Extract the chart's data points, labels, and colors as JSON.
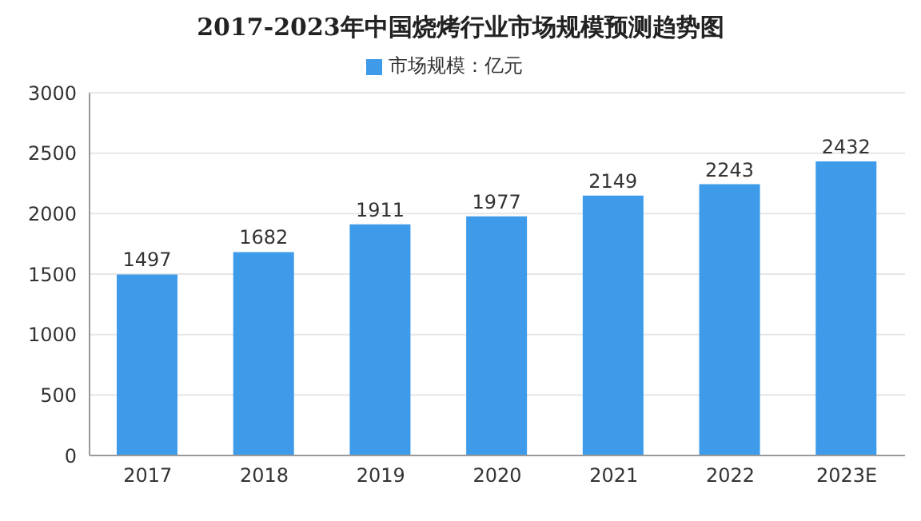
{
  "chart_data": {
    "type": "bar",
    "title": "2017-2023年中国烧烤行业市场规模预测趋势图",
    "categories": [
      "2017",
      "2018",
      "2019",
      "2020",
      "2021",
      "2022",
      "2023E"
    ],
    "series": [
      {
        "name": "市场规模：亿元",
        "color": "#3d9be9",
        "values": [
          1497,
          1682,
          1911,
          1977,
          2149,
          2243,
          2432
        ]
      }
    ],
    "ylim": [
      0,
      3000
    ],
    "yticks": [
      0,
      500,
      1000,
      1500,
      2000,
      2500,
      3000
    ],
    "grid": "y",
    "legend": "top",
    "data_labels": true
  }
}
